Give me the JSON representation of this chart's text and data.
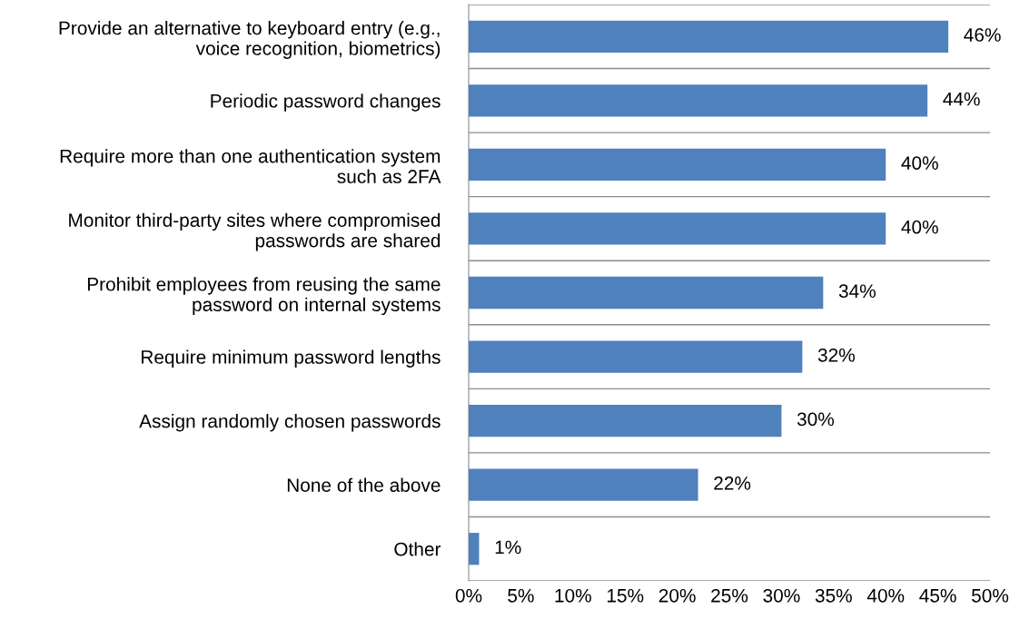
{
  "chart_data": {
    "type": "bar",
    "orientation": "horizontal",
    "categories": [
      "Provide an alternative to keyboard entry (e.g.,\nvoice recognition, biometrics)",
      "Periodic password changes",
      "Require more than one authentication system\nsuch as 2FA",
      "Monitor third-party sites where compromised\npasswords are shared",
      "Prohibit employees from reusing the same\npassword on internal systems",
      "Require minimum password lengths",
      "Assign randomly chosen passwords",
      "None of the above",
      "Other"
    ],
    "values": [
      46,
      44,
      40,
      40,
      34,
      32,
      30,
      22,
      1
    ],
    "value_labels": [
      "46%",
      "44%",
      "40%",
      "40%",
      "34%",
      "32%",
      "30%",
      "22%",
      "1%"
    ],
    "color": "#4f81bd",
    "xlim": [
      0,
      50
    ],
    "xticks": [
      {
        "value": 0,
        "label": "0%"
      },
      {
        "value": 5,
        "label": "5%"
      },
      {
        "value": 10,
        "label": "10%"
      },
      {
        "value": 15,
        "label": "15%"
      },
      {
        "value": 20,
        "label": "20%"
      },
      {
        "value": 25,
        "label": "25%"
      },
      {
        "value": 30,
        "label": "30%"
      },
      {
        "value": 35,
        "label": "35%"
      },
      {
        "value": 40,
        "label": "40%"
      },
      {
        "value": 45,
        "label": "45%"
      },
      {
        "value": 50,
        "label": "50%"
      }
    ],
    "grid": "y"
  }
}
